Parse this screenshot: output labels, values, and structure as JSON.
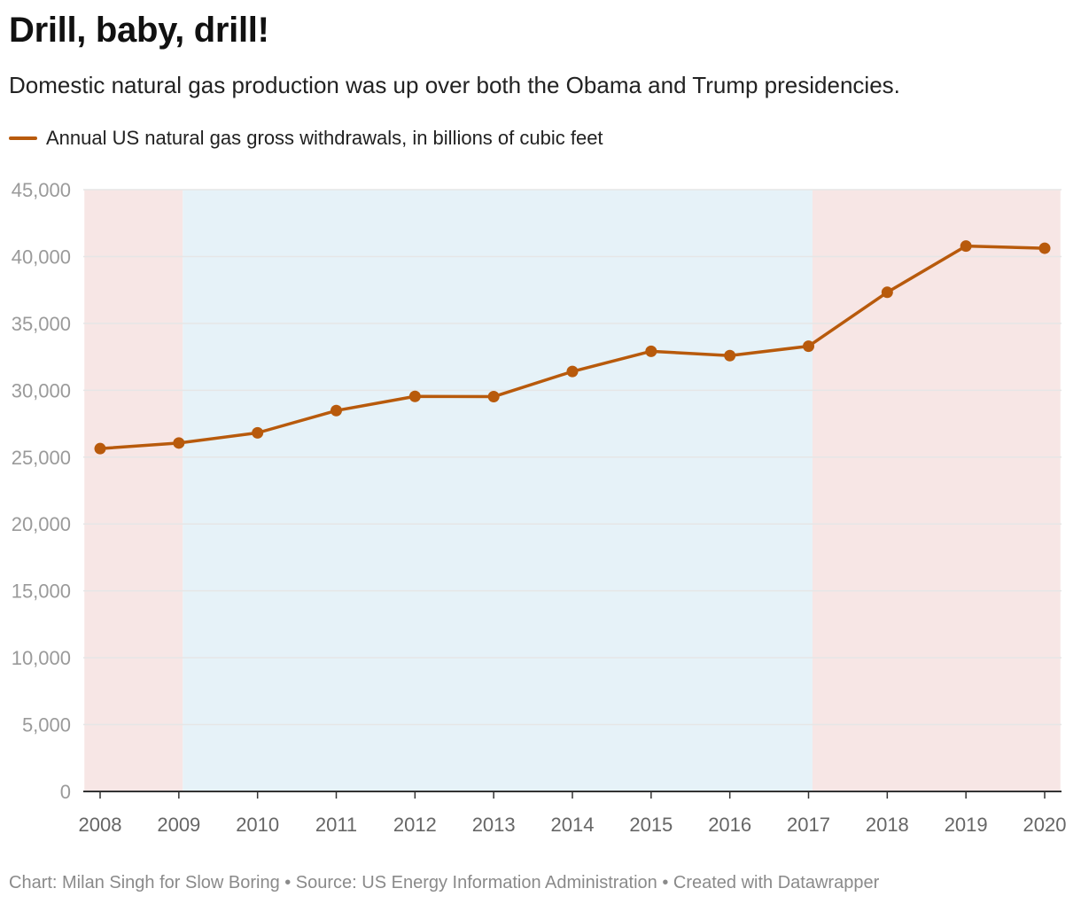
{
  "header": {
    "title": "Drill, baby, drill!",
    "subtitle": "Domestic natural gas production was up over both the Obama and Trump presidencies."
  },
  "legend": {
    "label": "Annual US natural gas gross withdrawals, in billions of cubic feet",
    "color": "#b85a0c"
  },
  "footer": {
    "text": "Chart: Milan Singh for Slow Boring • Source: US Energy Information Administration • Created with Datawrapper"
  },
  "colors": {
    "line": "#b85a0c",
    "republican_band": "#f7e6e5",
    "democrat_band": "#e6f2f8",
    "grid": "#e6e6e6",
    "axis": "#333333"
  },
  "chart_data": {
    "type": "line",
    "title": "Drill, baby, drill!",
    "subtitle": "Domestic natural gas production was up over both the Obama and Trump presidencies.",
    "xlabel": "",
    "ylabel": "",
    "ylim": [
      0,
      45000
    ],
    "xlim": [
      2008,
      2020
    ],
    "grid": true,
    "legend_position": "top-left",
    "x": [
      2008,
      2009,
      2010,
      2011,
      2012,
      2013,
      2014,
      2015,
      2016,
      2017,
      2018,
      2019,
      2020
    ],
    "x_tick_labels": [
      "2008",
      "2009",
      "2010",
      "2011",
      "2012",
      "2013",
      "2014",
      "2015",
      "2016",
      "2017",
      "2018",
      "2019",
      "2020"
    ],
    "y_ticks": [
      0,
      5000,
      10000,
      15000,
      20000,
      25000,
      30000,
      35000,
      40000,
      45000
    ],
    "y_tick_labels": [
      "0",
      "5,000",
      "10,000",
      "15,000",
      "20,000",
      "25,000",
      "30,000",
      "35,000",
      "40,000",
      "45,000"
    ],
    "series": [
      {
        "name": "Annual US natural gas gross withdrawals, in billions of cubic feet",
        "values": [
          25636,
          26057,
          26816,
          28479,
          29542,
          29523,
          31405,
          32915,
          32592,
          33293,
          37326,
          40780,
          40620
        ]
      }
    ],
    "background_bands": [
      {
        "from": 2007.8,
        "to": 2009.05,
        "party": "republican"
      },
      {
        "from": 2009.05,
        "to": 2017.05,
        "party": "democrat"
      },
      {
        "from": 2017.05,
        "to": 2020.2,
        "party": "republican"
      }
    ]
  }
}
